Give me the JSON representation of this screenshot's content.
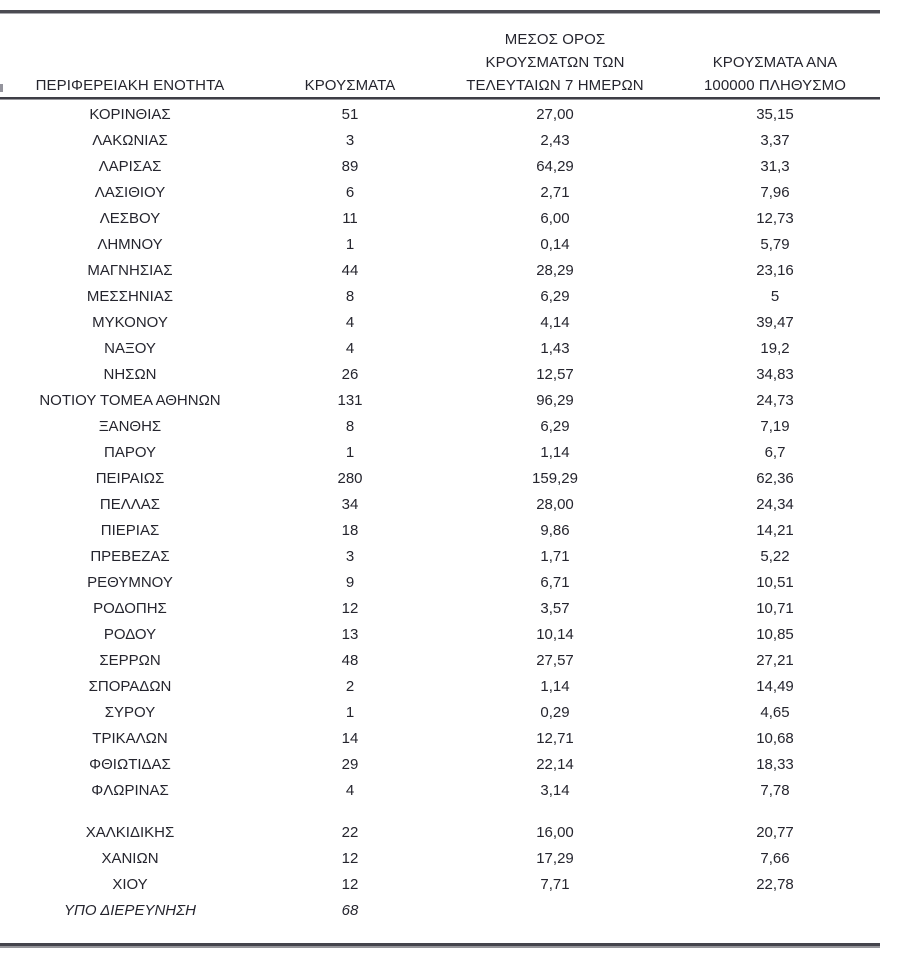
{
  "colors": {
    "text": "#25252e",
    "rule_dark": "#46464e",
    "rule_light": "#9b9ba0",
    "background": "#ffffff"
  },
  "table": {
    "header": {
      "col1": "ΠΕΡΙΦΕΡΕΙΑΚΗ ΕΝΟΤΗΤΑ",
      "col2": "ΚΡΟΥΣΜΑΤΑ",
      "col3_line1": "ΜΕΣΟΣ ΟΡΟΣ",
      "col3_line2": "ΚΡΟΥΣΜΑΤΩΝ ΤΩΝ",
      "col3_line3": "ΤΕΛΕΥΤΑΙΩΝ 7 ΗΜΕΡΩΝ",
      "col4_line1": "ΚΡΟΥΣΜΑΤΑ ΑΝΑ",
      "col4_line2": "100000 ΠΛΗΘΥΣΜΟ"
    },
    "rows": [
      {
        "name": "ΚΟΡΙΝΘΙΑΣ",
        "cases": "51",
        "avg7": "27,00",
        "per100k": "35,15"
      },
      {
        "name": "ΛΑΚΩΝΙΑΣ",
        "cases": "3",
        "avg7": "2,43",
        "per100k": "3,37"
      },
      {
        "name": "ΛΑΡΙΣΑΣ",
        "cases": "89",
        "avg7": "64,29",
        "per100k": "31,3"
      },
      {
        "name": "ΛΑΣΙΘΙΟΥ",
        "cases": "6",
        "avg7": "2,71",
        "per100k": "7,96"
      },
      {
        "name": "ΛΕΣΒΟΥ",
        "cases": "11",
        "avg7": "6,00",
        "per100k": "12,73"
      },
      {
        "name": "ΛΗΜΝΟΥ",
        "cases": "1",
        "avg7": "0,14",
        "per100k": "5,79"
      },
      {
        "name": "ΜΑΓΝΗΣΙΑΣ",
        "cases": "44",
        "avg7": "28,29",
        "per100k": "23,16"
      },
      {
        "name": "ΜΕΣΣΗΝΙΑΣ",
        "cases": "8",
        "avg7": "6,29",
        "per100k": "5"
      },
      {
        "name": "ΜΥΚΟΝΟΥ",
        "cases": "4",
        "avg7": "4,14",
        "per100k": "39,47"
      },
      {
        "name": "ΝΑΞΟΥ",
        "cases": "4",
        "avg7": "1,43",
        "per100k": "19,2"
      },
      {
        "name": "ΝΗΣΩΝ",
        "cases": "26",
        "avg7": "12,57",
        "per100k": "34,83"
      },
      {
        "name": "ΝΟΤΙΟΥ ΤΟΜΕΑ ΑΘΗΝΩΝ",
        "cases": "131",
        "avg7": "96,29",
        "per100k": "24,73"
      },
      {
        "name": "ΞΑΝΘΗΣ",
        "cases": "8",
        "avg7": "6,29",
        "per100k": "7,19"
      },
      {
        "name": "ΠΑΡΟΥ",
        "cases": "1",
        "avg7": "1,14",
        "per100k": "6,7"
      },
      {
        "name": "ΠΕΙΡΑΙΩΣ",
        "cases": "280",
        "avg7": "159,29",
        "per100k": "62,36"
      },
      {
        "name": "ΠΕΛΛΑΣ",
        "cases": "34",
        "avg7": "28,00",
        "per100k": "24,34"
      },
      {
        "name": "ΠΙΕΡΙΑΣ",
        "cases": "18",
        "avg7": "9,86",
        "per100k": "14,21"
      },
      {
        "name": "ΠΡΕΒΕΖΑΣ",
        "cases": "3",
        "avg7": "1,71",
        "per100k": "5,22"
      },
      {
        "name": "ΡΕΘΥΜΝΟΥ",
        "cases": "9",
        "avg7": "6,71",
        "per100k": "10,51"
      },
      {
        "name": "ΡΟΔΟΠΗΣ",
        "cases": "12",
        "avg7": "3,57",
        "per100k": "10,71"
      },
      {
        "name": "ΡΟΔΟΥ",
        "cases": "13",
        "avg7": "10,14",
        "per100k": "10,85"
      },
      {
        "name": "ΣΕΡΡΩΝ",
        "cases": "48",
        "avg7": "27,57",
        "per100k": "27,21"
      },
      {
        "name": "ΣΠΟΡΑΔΩΝ",
        "cases": "2",
        "avg7": "1,14",
        "per100k": "14,49"
      },
      {
        "name": "ΣΥΡΟΥ",
        "cases": "1",
        "avg7": "0,29",
        "per100k": "4,65"
      },
      {
        "name": "ΤΡΙΚΑΛΩΝ",
        "cases": "14",
        "avg7": "12,71",
        "per100k": "10,68"
      },
      {
        "name": "ΦΘΙΩΤΙΔΑΣ",
        "cases": "29",
        "avg7": "22,14",
        "per100k": "18,33"
      },
      {
        "name": "ΦΛΩΡΙΝΑΣ",
        "cases": "4",
        "avg7": "3,14",
        "per100k": "7,78"
      },
      {
        "name": "ΧΑΛΚΙΔΙΚΗΣ",
        "cases": "22",
        "avg7": "16,00",
        "per100k": "20,77",
        "gap_before": true
      },
      {
        "name": "ΧΑΝΙΩΝ",
        "cases": "12",
        "avg7": "17,29",
        "per100k": "7,66"
      },
      {
        "name": "ΧΙΟΥ",
        "cases": "12",
        "avg7": "7,71",
        "per100k": "22,78"
      },
      {
        "name": "ΥΠΟ ΔΙΕΡΕΥΝΗΣΗ",
        "cases": "68",
        "avg7": "",
        "per100k": "",
        "italic": true
      }
    ]
  }
}
